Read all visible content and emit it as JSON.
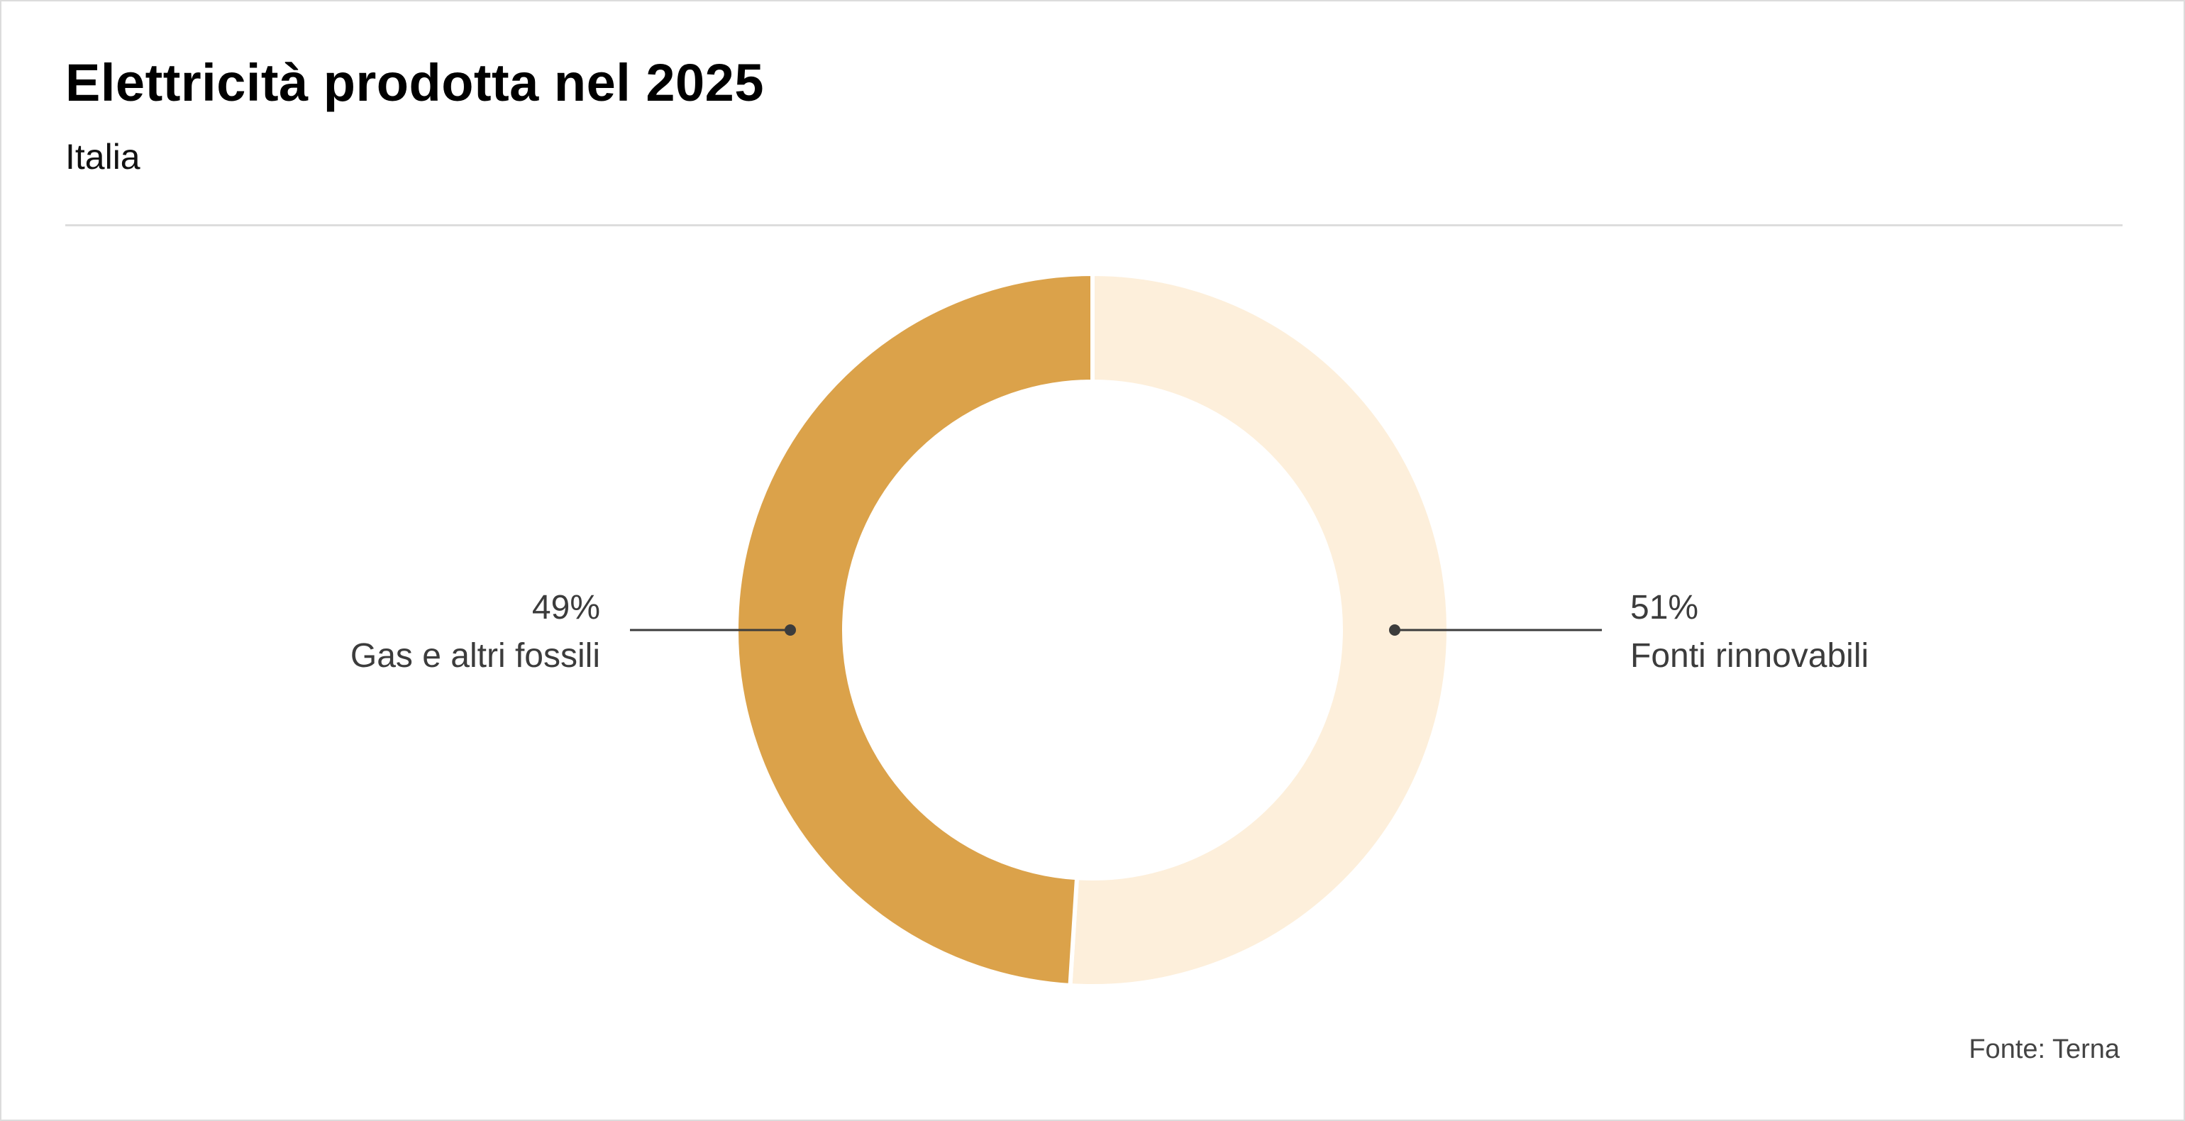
{
  "chart_data": {
    "type": "pie",
    "title": "Elettricità prodotta nel 2025",
    "subtitle": "Italia",
    "slices": [
      {
        "label": "Fonti rinnovabili",
        "value": 51,
        "value_label": "51%",
        "color": "#fdefdb",
        "side": "right"
      },
      {
        "label": "Gas e altri fossili",
        "value": 49,
        "value_label": "49%",
        "color": "#dba24a",
        "side": "left"
      }
    ],
    "source": "Fonte: Terna"
  }
}
